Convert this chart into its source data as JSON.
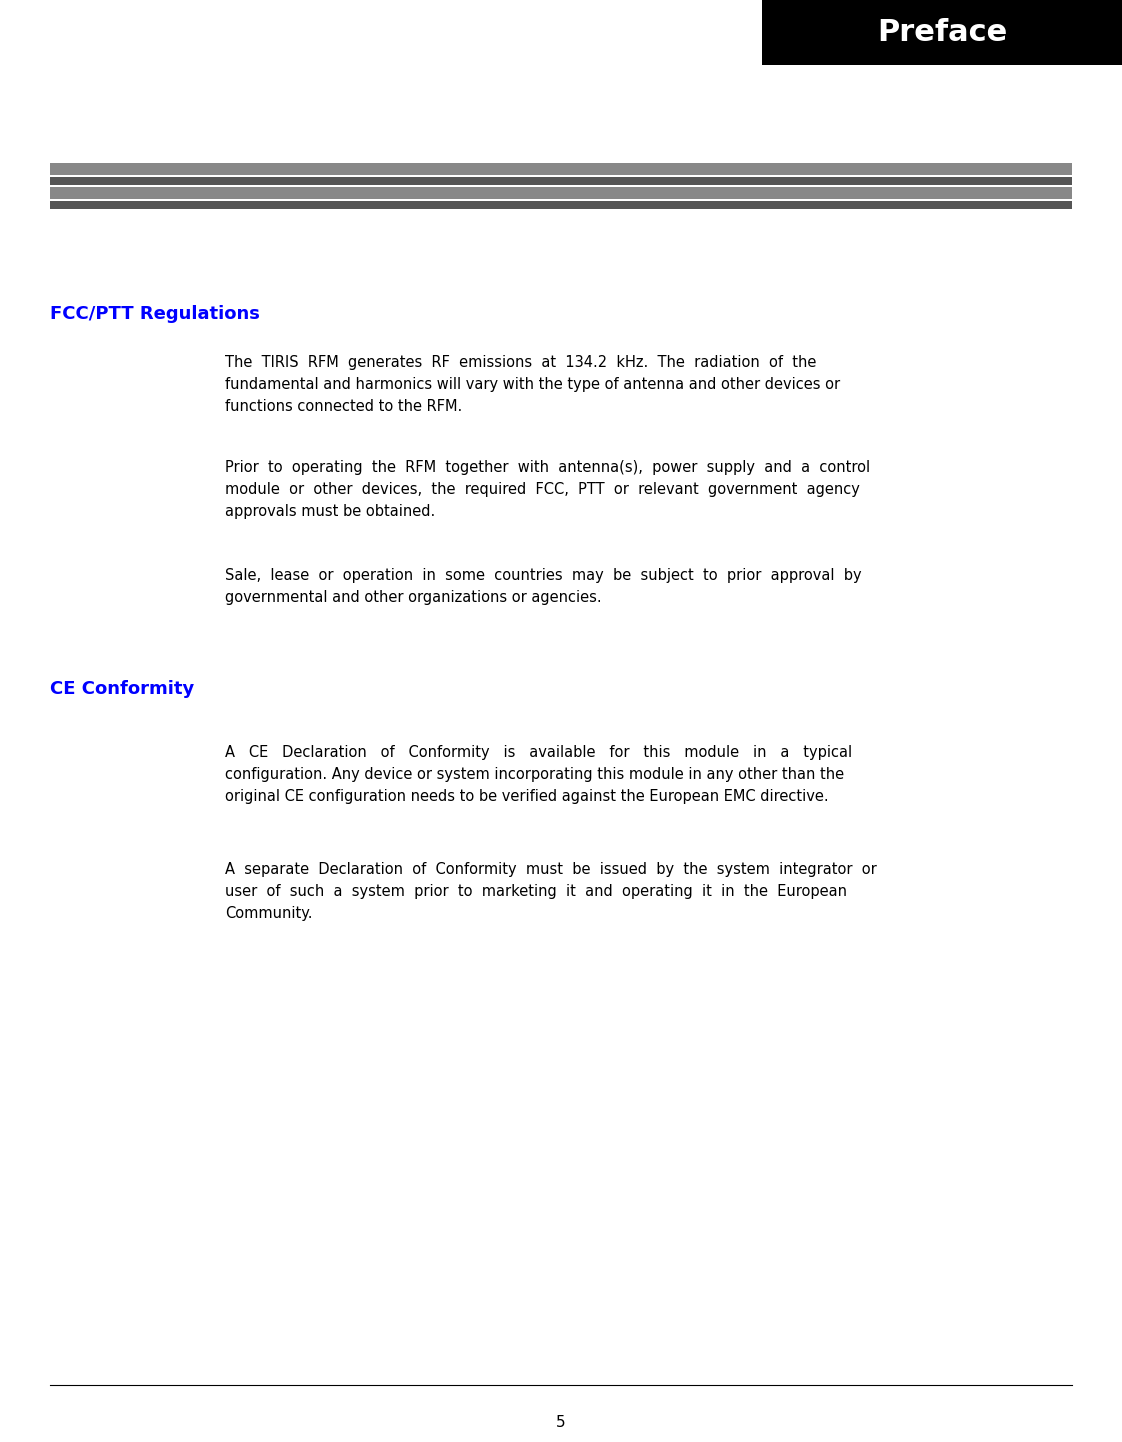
{
  "page_bg": "#ffffff",
  "header_bg": "#000000",
  "header_text": "Preface",
  "header_text_color": "#ffffff",
  "header_font_size": 22,
  "stripe_color1": "#888888",
  "stripe_color2": "#555555",
  "section1_title": "FCC/PTT Regulations",
  "section1_title_color": "#0000ff",
  "section1_title_fontsize": 13,
  "section1_para1": "The  TIRIS  RFM  generates  RF  emissions  at  134.2  kHz.  The  radiation  of  the\nfundamental and harmonics will vary with the type of antenna and other devices or\nfunctions connected to the RFM.",
  "section1_para2": "Prior  to  operating  the  RFM  together  with  antenna(s),  power  supply  and  a  control\nmodule  or  other  devices,  the  required  FCC,  PTT  or  relevant  government  agency\napprovals must be obtained.",
  "section1_para3": "Sale,  lease  or  operation  in  some  countries  may  be  subject  to  prior  approval  by\ngovernmental and other organizations or agencies.",
  "section2_title": "CE Conformity",
  "section2_title_color": "#0000ff",
  "section2_title_fontsize": 13,
  "section2_para1": "A   CE   Declaration   of   Conformity   is   available   for   this   module   in   a   typical\nconfiguration. Any device or system incorporating this module in any other than the\noriginal CE configuration needs to be verified against the European EMC directive.",
  "section2_para2": "A  separate  Declaration  of  Conformity  must  be  issued  by  the  system  integrator  or\nuser  of  such  a  system  prior  to  marketing  it  and  operating  it  in  the  European\nCommunity.",
  "page_number": "5",
  "body_font_size": 10.5,
  "body_font_color": "#000000",
  "footer_line_color": "#000000"
}
